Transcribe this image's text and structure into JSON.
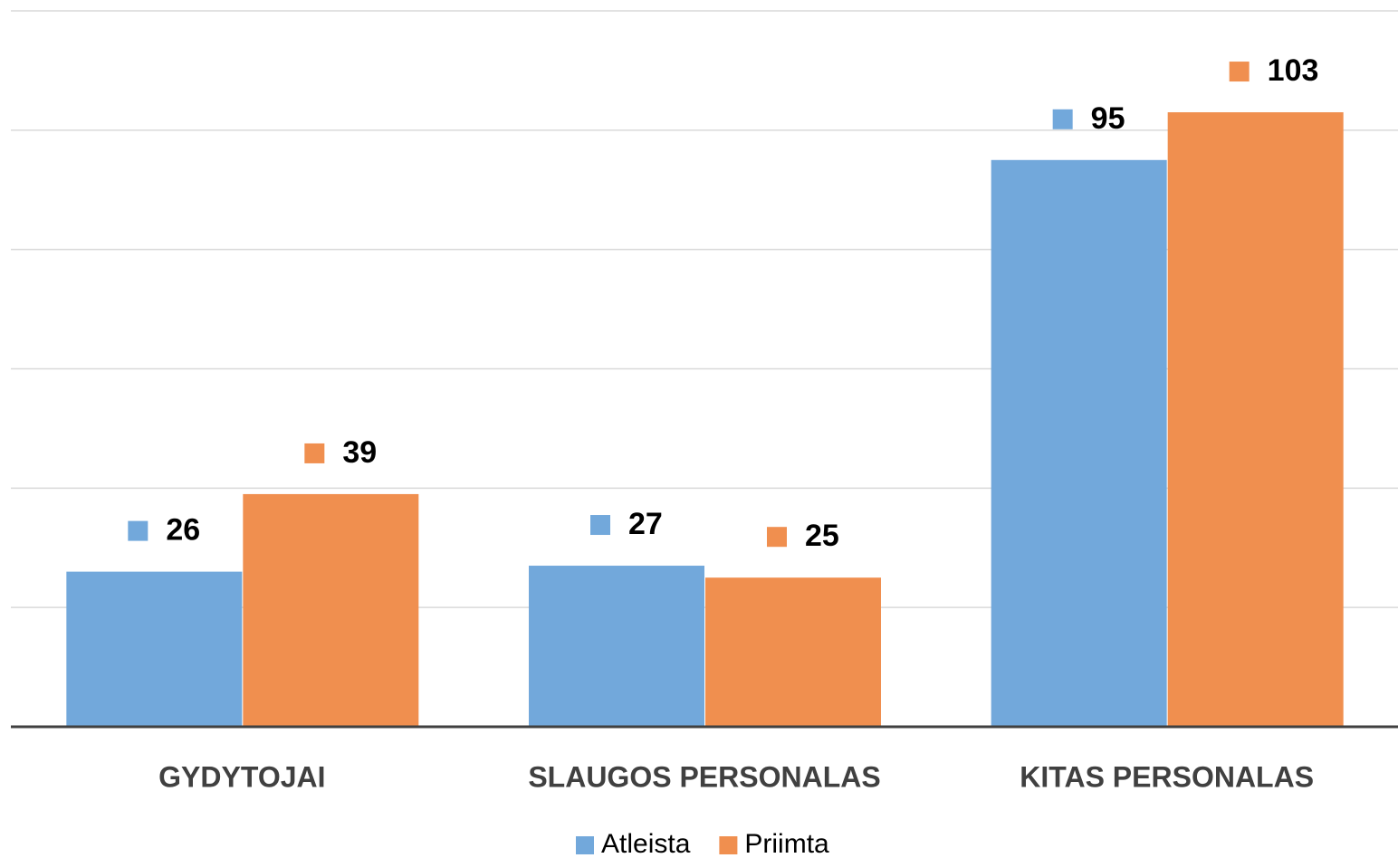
{
  "chart_data": {
    "type": "bar",
    "categories": [
      "GYDYTOJAI",
      "SLAUGOS PERSONALAS",
      "KITAS PERSONALAS"
    ],
    "series": [
      {
        "name": "Atleista",
        "color": "#72a8db",
        "values": [
          26,
          27,
          95
        ]
      },
      {
        "name": "Priimta",
        "color": "#f08f4f",
        "values": [
          39,
          25,
          103
        ]
      }
    ],
    "ylim": [
      0,
      120
    ],
    "yticks": [
      0,
      20,
      40,
      60,
      80,
      100,
      120
    ],
    "grid": true,
    "legend": "bottom"
  }
}
